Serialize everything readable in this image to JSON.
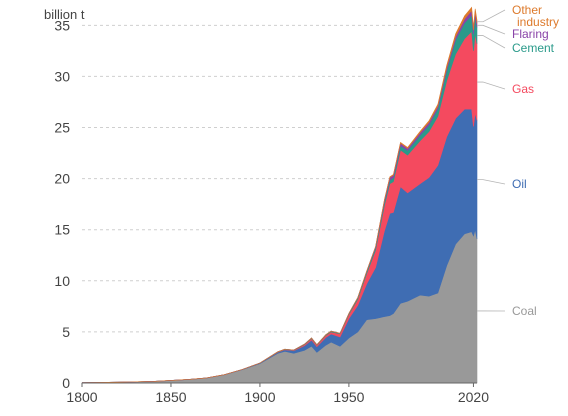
{
  "chart_data": {
    "type": "area",
    "stacked": true,
    "unit_label": "billion t",
    "xlim": [
      1800,
      2022
    ],
    "ylim": [
      0,
      36.5
    ],
    "x_ticks": [
      1800,
      1850,
      1900,
      1950,
      2020
    ],
    "y_ticks": [
      0,
      5,
      10,
      15,
      20,
      25,
      30,
      35
    ],
    "grid": "horizontal dashed",
    "legend": "labels at right end of each series",
    "x": [
      1800,
      1820,
      1840,
      1860,
      1870,
      1880,
      1890,
      1900,
      1910,
      1914,
      1919,
      1925,
      1929,
      1932,
      1937,
      1940,
      1945,
      1950,
      1955,
      1960,
      1965,
      1970,
      1973,
      1975,
      1979,
      1983,
      1990,
      1995,
      2000,
      2005,
      2010,
      2015,
      2019,
      2020,
      2021,
      2022
    ],
    "series": [
      {
        "name": "Coal",
        "color": "#999999",
        "values": [
          0.03,
          0.08,
          0.15,
          0.35,
          0.5,
          0.8,
          1.3,
          1.9,
          2.9,
          3.1,
          2.9,
          3.2,
          3.6,
          3.0,
          3.7,
          4.0,
          3.6,
          4.4,
          5.0,
          6.2,
          6.3,
          6.5,
          6.6,
          6.8,
          7.8,
          8.0,
          8.6,
          8.5,
          8.8,
          11.5,
          13.6,
          14.6,
          14.8,
          14.4,
          15.0,
          14.1
        ]
      },
      {
        "name": "Oil",
        "color": "#3f6db3",
        "values": [
          0,
          0,
          0,
          0,
          0,
          0.01,
          0.02,
          0.05,
          0.1,
          0.15,
          0.25,
          0.45,
          0.6,
          0.55,
          0.75,
          0.8,
          0.9,
          1.9,
          2.6,
          3.5,
          5.0,
          8.4,
          10.0,
          9.9,
          11.4,
          10.6,
          10.9,
          11.6,
          12.5,
          12.6,
          12.3,
          12.2,
          12.0,
          10.7,
          11.4,
          11.6
        ]
      },
      {
        "name": "Gas",
        "color": "#f44a5f",
        "values": [
          0,
          0,
          0,
          0,
          0,
          0,
          0,
          0,
          0.02,
          0.03,
          0.05,
          0.1,
          0.15,
          0.15,
          0.2,
          0.2,
          0.3,
          0.4,
          0.6,
          1.0,
          1.7,
          2.5,
          2.9,
          3.0,
          3.6,
          3.7,
          4.2,
          4.5,
          4.8,
          5.5,
          6.3,
          6.9,
          7.6,
          7.4,
          7.8,
          7.5
        ]
      },
      {
        "name": "Cement",
        "color": "#2a9a8a",
        "values": [
          0,
          0,
          0,
          0,
          0,
          0,
          0,
          0.01,
          0.03,
          0.03,
          0.03,
          0.05,
          0.06,
          0.05,
          0.07,
          0.08,
          0.06,
          0.1,
          0.15,
          0.2,
          0.25,
          0.33,
          0.37,
          0.38,
          0.42,
          0.45,
          0.55,
          0.65,
          0.75,
          1.0,
          1.4,
          1.55,
          1.6,
          1.62,
          1.68,
          1.6
        ]
      },
      {
        "name": "Flaring",
        "color": "#8a44a8",
        "values": [
          0,
          0,
          0,
          0,
          0,
          0,
          0,
          0,
          0,
          0,
          0,
          0,
          0,
          0,
          0,
          0,
          0,
          0.01,
          0.02,
          0.05,
          0.1,
          0.2,
          0.25,
          0.25,
          0.25,
          0.2,
          0.25,
          0.25,
          0.25,
          0.28,
          0.3,
          0.37,
          0.44,
          0.4,
          0.42,
          0.4
        ]
      },
      {
        "name": "Other industry",
        "color": "#dd7a2c",
        "values": [
          0,
          0,
          0,
          0,
          0,
          0,
          0,
          0,
          0,
          0,
          0,
          0,
          0,
          0,
          0,
          0,
          0,
          0,
          0,
          0,
          0,
          0.05,
          0.06,
          0.07,
          0.08,
          0.1,
          0.12,
          0.15,
          0.17,
          0.22,
          0.28,
          0.3,
          0.32,
          0.3,
          0.32,
          0.3
        ]
      }
    ]
  }
}
